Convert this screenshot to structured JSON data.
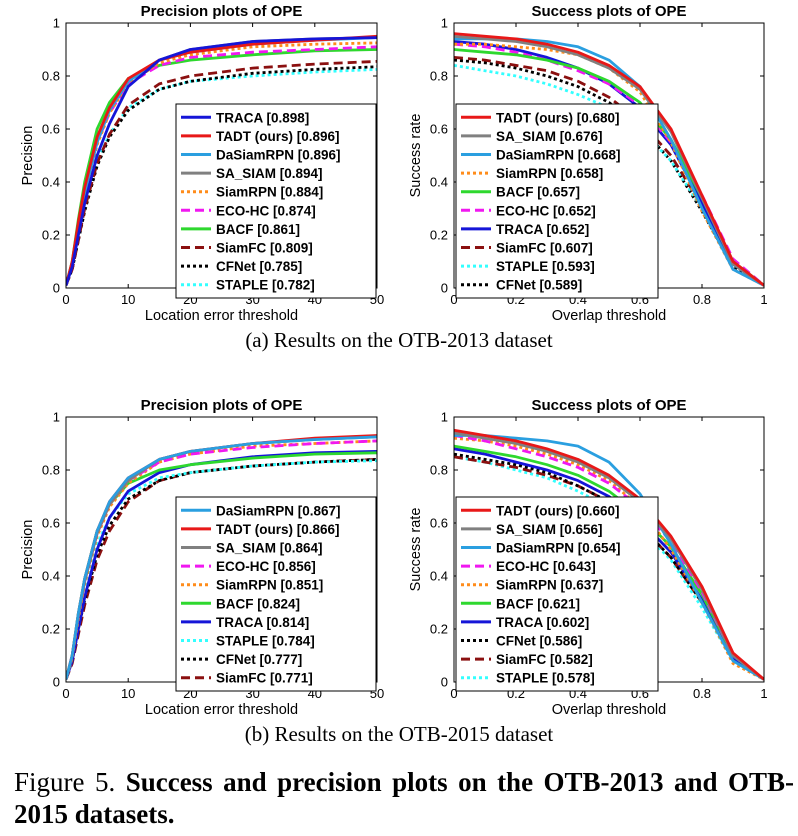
{
  "colors": {
    "TRACA": "#1515d8",
    "TADT (ours)": "#e81818",
    "DaSiamRPN": "#2a9fe0",
    "SA_SIAM": "#808080",
    "SiamRPN": "#ff8c1a",
    "ECO-HC": "#f018f0",
    "BACF": "#2ed82e",
    "SiamFC": "#8b1010",
    "CFNet": "#000000",
    "STAPLE": "#33ffff"
  },
  "styles": {
    "TRACA": "solid",
    "TADT (ours)": "solid",
    "DaSiamRPN": "solid",
    "SA_SIAM": "solid",
    "SiamRPN": "dotted",
    "ECO-HC": "dashed",
    "BACF": "solid",
    "SiamFC": "dashed",
    "CFNet": "dotted",
    "STAPLE": "dotted"
  },
  "captions": {
    "a": "(a)  Results on the OTB-2013 dataset",
    "b": "(b)  Results on the OTB-2015 dataset",
    "figure_prefix": "Figure 5.",
    "figure_bold": "Success and precision plots on the OTB-2013 and OTB-2015 datasets."
  },
  "chart_data": [
    {
      "type": "line",
      "title": "Precision plots of OPE",
      "xlabel": "Location error threshold",
      "ylabel": "Precision",
      "xlim": [
        0,
        50
      ],
      "ylim": [
        0,
        1
      ],
      "xticks": [
        0,
        10,
        20,
        30,
        40,
        50
      ],
      "yticks": [
        0,
        0.2,
        0.4,
        0.6,
        0.8,
        1
      ],
      "legend_position": "bottom-right",
      "x": [
        0,
        1,
        2,
        3,
        5,
        7,
        10,
        15,
        20,
        30,
        40,
        50
      ],
      "series": [
        {
          "name": "TRACA",
          "label": "TRACA [0.898]",
          "values": [
            0.01,
            0.08,
            0.2,
            0.32,
            0.5,
            0.62,
            0.76,
            0.86,
            0.9,
            0.93,
            0.94,
            0.945
          ]
        },
        {
          "name": "TADT (ours)",
          "label": "TADT (ours) [0.896]",
          "values": [
            0.01,
            0.1,
            0.25,
            0.38,
            0.57,
            0.68,
            0.79,
            0.86,
            0.89,
            0.92,
            0.935,
            0.95
          ]
        },
        {
          "name": "DaSiamRPN",
          "label": "DaSiamRPN [0.896]",
          "values": [
            0.01,
            0.09,
            0.23,
            0.36,
            0.55,
            0.67,
            0.78,
            0.86,
            0.89,
            0.92,
            0.935,
            0.945
          ]
        },
        {
          "name": "SA_SIAM",
          "label": "SA_SIAM [0.894]",
          "values": [
            0.01,
            0.09,
            0.24,
            0.37,
            0.56,
            0.67,
            0.78,
            0.86,
            0.9,
            0.93,
            0.94,
            0.945
          ]
        },
        {
          "name": "SiamRPN",
          "label": "SiamRPN [0.884]",
          "values": [
            0.01,
            0.09,
            0.22,
            0.35,
            0.54,
            0.66,
            0.77,
            0.85,
            0.88,
            0.91,
            0.92,
            0.925
          ]
        },
        {
          "name": "ECO-HC",
          "label": "ECO-HC [0.874]",
          "values": [
            0.01,
            0.09,
            0.23,
            0.36,
            0.55,
            0.66,
            0.77,
            0.84,
            0.87,
            0.89,
            0.9,
            0.91
          ]
        },
        {
          "name": "BACF",
          "label": "BACF [0.861]",
          "values": [
            0.01,
            0.1,
            0.26,
            0.4,
            0.6,
            0.7,
            0.79,
            0.84,
            0.86,
            0.88,
            0.895,
            0.9
          ]
        },
        {
          "name": "SiamFC",
          "label": "SiamFC [0.809]",
          "values": [
            0.01,
            0.07,
            0.18,
            0.3,
            0.47,
            0.58,
            0.69,
            0.77,
            0.8,
            0.83,
            0.845,
            0.855
          ]
        },
        {
          "name": "CFNet",
          "label": "CFNet [0.785]",
          "values": [
            0.01,
            0.07,
            0.18,
            0.29,
            0.46,
            0.57,
            0.67,
            0.75,
            0.78,
            0.81,
            0.825,
            0.835
          ]
        },
        {
          "name": "STAPLE",
          "label": "STAPLE [0.782]",
          "values": [
            0.01,
            0.08,
            0.2,
            0.31,
            0.48,
            0.58,
            0.68,
            0.75,
            0.78,
            0.8,
            0.815,
            0.825
          ]
        }
      ]
    },
    {
      "type": "line",
      "title": "Success plots of OPE",
      "xlabel": "Overlap threshold",
      "ylabel": "Success rate",
      "xlim": [
        0,
        1
      ],
      "ylim": [
        0,
        1
      ],
      "xticks": [
        0,
        0.2,
        0.4,
        0.6,
        0.8,
        1
      ],
      "yticks": [
        0,
        0.2,
        0.4,
        0.6,
        0.8,
        1
      ],
      "legend_position": "bottom-left",
      "x": [
        0,
        0.1,
        0.2,
        0.3,
        0.4,
        0.5,
        0.6,
        0.7,
        0.8,
        0.9,
        1
      ],
      "series": [
        {
          "name": "TADT (ours)",
          "label": "TADT (ours) [0.680]",
          "values": [
            0.96,
            0.95,
            0.94,
            0.92,
            0.89,
            0.84,
            0.76,
            0.6,
            0.35,
            0.1,
            0.01
          ]
        },
        {
          "name": "SA_SIAM",
          "label": "SA_SIAM [0.676]",
          "values": [
            0.95,
            0.94,
            0.93,
            0.91,
            0.88,
            0.83,
            0.75,
            0.59,
            0.34,
            0.09,
            0.01
          ]
        },
        {
          "name": "DaSiamRPN",
          "label": "DaSiamRPN [0.668]",
          "values": [
            0.94,
            0.94,
            0.94,
            0.93,
            0.91,
            0.86,
            0.76,
            0.56,
            0.3,
            0.07,
            0.01
          ]
        },
        {
          "name": "SiamRPN",
          "label": "SiamRPN [0.658]",
          "values": [
            0.92,
            0.92,
            0.91,
            0.9,
            0.88,
            0.83,
            0.74,
            0.55,
            0.29,
            0.07,
            0.01
          ]
        },
        {
          "name": "BACF",
          "label": "BACF [0.657]",
          "values": [
            0.9,
            0.89,
            0.88,
            0.86,
            0.83,
            0.78,
            0.7,
            0.56,
            0.34,
            0.1,
            0.01
          ]
        },
        {
          "name": "ECO-HC",
          "label": "ECO-HC [0.652]",
          "values": [
            0.92,
            0.91,
            0.89,
            0.86,
            0.82,
            0.77,
            0.69,
            0.55,
            0.35,
            0.11,
            0.01
          ]
        },
        {
          "name": "TRACA",
          "label": "TRACA [0.652]",
          "values": [
            0.93,
            0.92,
            0.9,
            0.87,
            0.83,
            0.77,
            0.68,
            0.54,
            0.32,
            0.09,
            0.01
          ]
        },
        {
          "name": "SiamFC",
          "label": "SiamFC [0.607]",
          "values": [
            0.87,
            0.86,
            0.84,
            0.82,
            0.78,
            0.72,
            0.63,
            0.5,
            0.31,
            0.09,
            0.01
          ]
        },
        {
          "name": "STAPLE",
          "label": "STAPLE [0.593]",
          "values": [
            0.84,
            0.82,
            0.8,
            0.77,
            0.73,
            0.68,
            0.6,
            0.48,
            0.3,
            0.09,
            0.01
          ]
        },
        {
          "name": "CFNet",
          "label": "CFNet [0.589]",
          "values": [
            0.86,
            0.85,
            0.83,
            0.8,
            0.76,
            0.7,
            0.61,
            0.48,
            0.29,
            0.08,
            0.01
          ]
        }
      ]
    },
    {
      "type": "line",
      "title": "Precision plots of OPE",
      "xlabel": "Location error threshold",
      "ylabel": "Precision",
      "xlim": [
        0,
        50
      ],
      "ylim": [
        0,
        1
      ],
      "xticks": [
        0,
        10,
        20,
        30,
        40,
        50
      ],
      "yticks": [
        0,
        0.2,
        0.4,
        0.6,
        0.8,
        1
      ],
      "legend_position": "bottom-right",
      "x": [
        0,
        1,
        2,
        3,
        5,
        7,
        10,
        15,
        20,
        30,
        40,
        50
      ],
      "series": [
        {
          "name": "DaSiamRPN",
          "label": "DaSiamRPN [0.867]",
          "values": [
            0.01,
            0.1,
            0.26,
            0.39,
            0.57,
            0.68,
            0.77,
            0.84,
            0.87,
            0.9,
            0.915,
            0.925
          ]
        },
        {
          "name": "TADT (ours)",
          "label": "TADT (ours) [0.866]",
          "values": [
            0.01,
            0.1,
            0.26,
            0.39,
            0.57,
            0.68,
            0.77,
            0.84,
            0.87,
            0.9,
            0.92,
            0.93
          ]
        },
        {
          "name": "SA_SIAM",
          "label": "SA_SIAM [0.864]",
          "values": [
            0.01,
            0.1,
            0.25,
            0.38,
            0.56,
            0.67,
            0.76,
            0.84,
            0.87,
            0.9,
            0.915,
            0.925
          ]
        },
        {
          "name": "ECO-HC",
          "label": "ECO-HC [0.856]",
          "values": [
            0.01,
            0.1,
            0.25,
            0.38,
            0.56,
            0.67,
            0.76,
            0.83,
            0.86,
            0.885,
            0.9,
            0.91
          ]
        },
        {
          "name": "SiamRPN",
          "label": "SiamRPN [0.851]",
          "values": [
            0.01,
            0.09,
            0.24,
            0.37,
            0.55,
            0.66,
            0.75,
            0.83,
            0.86,
            0.89,
            0.9,
            0.91
          ]
        },
        {
          "name": "BACF",
          "label": "BACF [0.824]",
          "values": [
            0.01,
            0.1,
            0.26,
            0.39,
            0.57,
            0.67,
            0.75,
            0.8,
            0.82,
            0.845,
            0.86,
            0.865
          ]
        },
        {
          "name": "TRACA",
          "label": "TRACA [0.814]",
          "values": [
            0.01,
            0.08,
            0.2,
            0.32,
            0.5,
            0.62,
            0.72,
            0.79,
            0.82,
            0.85,
            0.865,
            0.87
          ]
        },
        {
          "name": "STAPLE",
          "label": "STAPLE [0.784]",
          "values": [
            0.01,
            0.09,
            0.23,
            0.35,
            0.52,
            0.62,
            0.71,
            0.77,
            0.79,
            0.815,
            0.83,
            0.835
          ]
        },
        {
          "name": "CFNet",
          "label": "CFNet [0.777]",
          "values": [
            0.01,
            0.08,
            0.2,
            0.31,
            0.48,
            0.59,
            0.69,
            0.76,
            0.79,
            0.815,
            0.83,
            0.84
          ]
        },
        {
          "name": "SiamFC",
          "label": "SiamFC [0.771]",
          "values": [
            0.01,
            0.07,
            0.18,
            0.29,
            0.46,
            0.57,
            0.68,
            0.76,
            0.79,
            0.815,
            0.83,
            0.84
          ]
        }
      ]
    },
    {
      "type": "line",
      "title": "Success plots of OPE",
      "xlabel": "Overlap threshold",
      "ylabel": "Success rate",
      "xlim": [
        0,
        1
      ],
      "ylim": [
        0,
        1
      ],
      "xticks": [
        0,
        0.2,
        0.4,
        0.6,
        0.8,
        1
      ],
      "yticks": [
        0,
        0.2,
        0.4,
        0.6,
        0.8,
        1
      ],
      "legend_position": "bottom-left",
      "x": [
        0,
        0.1,
        0.2,
        0.3,
        0.4,
        0.5,
        0.6,
        0.7,
        0.8,
        0.9,
        1
      ],
      "series": [
        {
          "name": "TADT (ours)",
          "label": "TADT (ours) [0.660]",
          "values": [
            0.95,
            0.93,
            0.91,
            0.88,
            0.84,
            0.78,
            0.69,
            0.55,
            0.36,
            0.11,
            0.01
          ]
        },
        {
          "name": "SA_SIAM",
          "label": "SA_SIAM [0.656]",
          "values": [
            0.94,
            0.92,
            0.9,
            0.87,
            0.83,
            0.77,
            0.68,
            0.54,
            0.35,
            0.1,
            0.01
          ]
        },
        {
          "name": "DaSiamRPN",
          "label": "DaSiamRPN [0.654]",
          "values": [
            0.93,
            0.93,
            0.92,
            0.91,
            0.89,
            0.83,
            0.71,
            0.52,
            0.3,
            0.08,
            0.01
          ]
        },
        {
          "name": "ECO-HC",
          "label": "ECO-HC [0.643]",
          "values": [
            0.93,
            0.91,
            0.88,
            0.85,
            0.81,
            0.75,
            0.66,
            0.53,
            0.34,
            0.1,
            0.01
          ]
        },
        {
          "name": "SiamRPN",
          "label": "SiamRPN [0.637]",
          "values": [
            0.92,
            0.91,
            0.89,
            0.86,
            0.82,
            0.76,
            0.66,
            0.5,
            0.3,
            0.07,
            0.01
          ]
        },
        {
          "name": "BACF",
          "label": "BACF [0.621]",
          "values": [
            0.89,
            0.87,
            0.85,
            0.82,
            0.78,
            0.72,
            0.63,
            0.51,
            0.33,
            0.1,
            0.01
          ]
        },
        {
          "name": "TRACA",
          "label": "TRACA [0.602]",
          "values": [
            0.88,
            0.86,
            0.83,
            0.8,
            0.76,
            0.7,
            0.61,
            0.49,
            0.31,
            0.09,
            0.01
          ]
        },
        {
          "name": "CFNet",
          "label": "CFNet [0.586]",
          "values": [
            0.86,
            0.84,
            0.82,
            0.79,
            0.74,
            0.68,
            0.59,
            0.47,
            0.3,
            0.09,
            0.01
          ]
        },
        {
          "name": "SiamFC",
          "label": "SiamFC [0.582]",
          "values": [
            0.85,
            0.83,
            0.81,
            0.78,
            0.74,
            0.68,
            0.59,
            0.47,
            0.3,
            0.09,
            0.01
          ]
        },
        {
          "name": "STAPLE",
          "label": "STAPLE [0.578]",
          "values": [
            0.85,
            0.83,
            0.8,
            0.77,
            0.72,
            0.66,
            0.58,
            0.46,
            0.28,
            0.08,
            0.01
          ]
        }
      ]
    }
  ]
}
